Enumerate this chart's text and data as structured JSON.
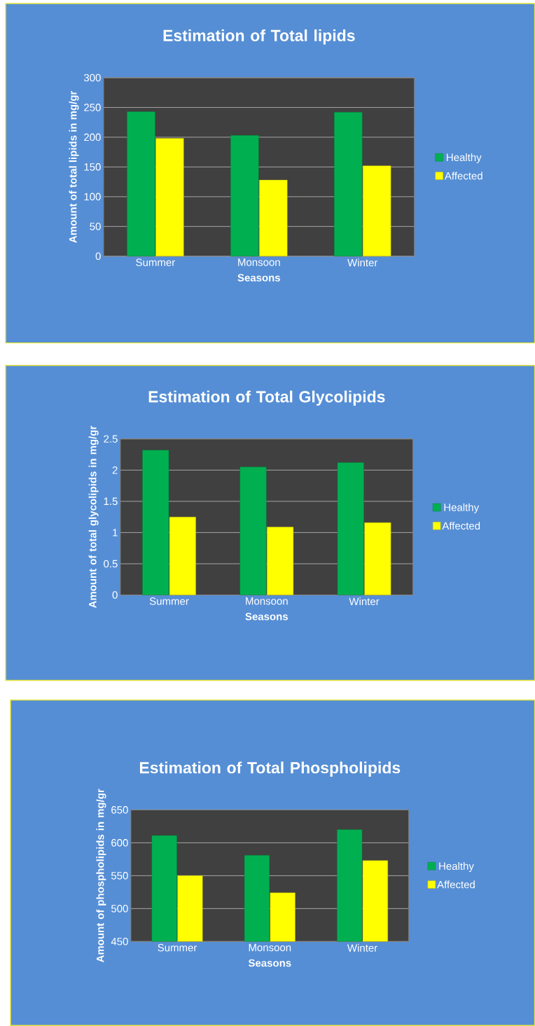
{
  "chart_data": [
    {
      "type": "bar",
      "title": "Estimation of Total lipids",
      "xlabel": "Seasons",
      "ylabel": "Amount of total lipids in mg/gr",
      "categories": [
        "Summer",
        "Monsoon",
        "Winter"
      ],
      "series": [
        {
          "name": "Healthy",
          "color": "#00b050",
          "values": [
            243,
            203,
            242
          ]
        },
        {
          "name": "Affected",
          "color": "#ffff00",
          "values": [
            198,
            128,
            152
          ]
        }
      ],
      "ylim": [
        0,
        300
      ],
      "yticks": [
        0,
        50,
        100,
        150,
        200,
        250,
        300
      ],
      "grid": "y",
      "legend": "right"
    },
    {
      "type": "bar",
      "title": "Estimation of Total Glycolipids",
      "xlabel": "Seasons",
      "ylabel": "Amount of total glycolipids in mg/gr",
      "categories": [
        "Summer",
        "Monsoon",
        "Winter"
      ],
      "series": [
        {
          "name": "Healthy",
          "color": "#00b050",
          "values": [
            2.32,
            2.05,
            2.12
          ]
        },
        {
          "name": "Affected",
          "color": "#ffff00",
          "values": [
            1.25,
            1.09,
            1.16
          ]
        }
      ],
      "ylim": [
        0,
        2.5
      ],
      "yticks": [
        0,
        0.5,
        1,
        1.5,
        2,
        2.5
      ],
      "grid": "y",
      "legend": "right"
    },
    {
      "type": "bar",
      "title": "Estimation of Total Phospholipids",
      "xlabel": "Seasons",
      "ylabel": "Amount of phospholipids in mg/gr",
      "categories": [
        "Summer",
        "Monsoon",
        "Winter"
      ],
      "series": [
        {
          "name": "Healthy",
          "color": "#00b050",
          "values": [
            611,
            581,
            620
          ]
        },
        {
          "name": "Affected",
          "color": "#ffff00",
          "values": [
            550,
            524,
            573
          ]
        }
      ],
      "ylim": [
        450,
        650
      ],
      "yticks": [
        450,
        500,
        550,
        600,
        650
      ],
      "grid": "y",
      "legend": "right"
    }
  ]
}
